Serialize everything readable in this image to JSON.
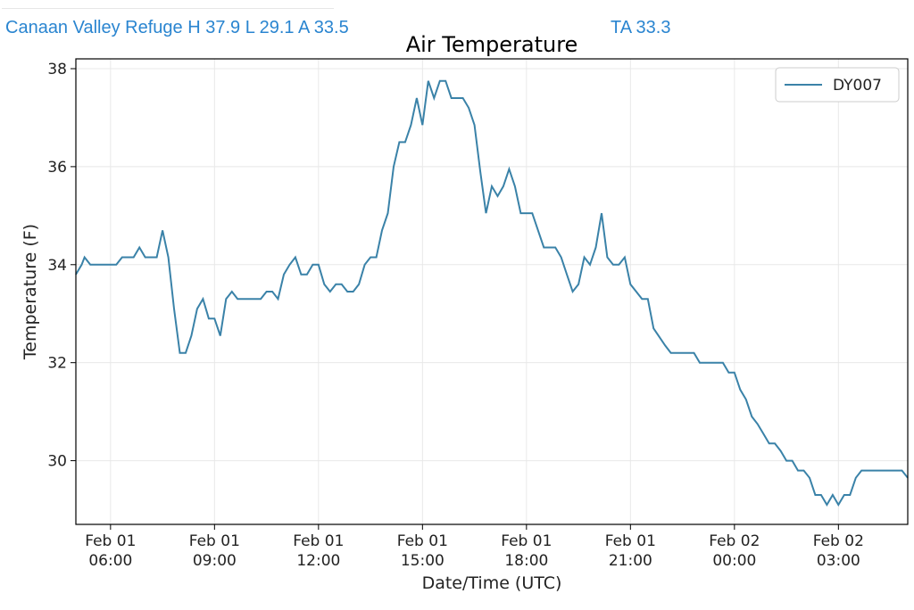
{
  "header": {
    "station_summary": "Canaan Valley Refuge H 37.9 L 29.1 A 33.5",
    "ta_label": "TA 33.3"
  },
  "colors": {
    "header_text": "#2a85d0",
    "series_line": "#3a82a8",
    "grid": "#e8e8e8"
  },
  "chart_data": {
    "type": "line",
    "title": "Air Temperature",
    "xlabel": "Date/Time (UTC)",
    "ylabel": "Temperature (F)",
    "xlim": [
      "Feb 01 05:00",
      "Feb 02 05:00"
    ],
    "ylim": [
      28.7,
      38.2
    ],
    "yticks": [
      30,
      32,
      34,
      36,
      38
    ],
    "xticks": [
      {
        "x": "Feb 01 06:00",
        "line1": "Feb 01",
        "line2": "06:00"
      },
      {
        "x": "Feb 01 09:00",
        "line1": "Feb 01",
        "line2": "09:00"
      },
      {
        "x": "Feb 01 12:00",
        "line1": "Feb 01",
        "line2": "12:00"
      },
      {
        "x": "Feb 01 15:00",
        "line1": "Feb 01",
        "line2": "15:00"
      },
      {
        "x": "Feb 01 18:00",
        "line1": "Feb 01",
        "line2": "18:00"
      },
      {
        "x": "Feb 01 21:00",
        "line1": "Feb 01",
        "line2": "21:00"
      },
      {
        "x": "Feb 02 00:00",
        "line1": "Feb 02",
        "line2": "00:00"
      },
      {
        "x": "Feb 02 03:00",
        "line1": "Feb 02",
        "line2": "03:00"
      }
    ],
    "grid": true,
    "legend_position": "top-right",
    "series": [
      {
        "name": "DY007",
        "color": "#3a82a8",
        "points": [
          [
            "Feb 01 05:00",
            33.8
          ],
          [
            "Feb 01 05:10",
            34.0
          ],
          [
            "Feb 01 05:15",
            34.15
          ],
          [
            "Feb 01 05:25",
            34.0
          ],
          [
            "Feb 01 06:00",
            34.0
          ],
          [
            "Feb 01 06:10",
            34.0
          ],
          [
            "Feb 01 06:20",
            34.15
          ],
          [
            "Feb 01 06:40",
            34.15
          ],
          [
            "Feb 01 06:50",
            34.35
          ],
          [
            "Feb 01 07:00",
            34.15
          ],
          [
            "Feb 01 07:20",
            34.15
          ],
          [
            "Feb 01 07:30",
            34.7
          ],
          [
            "Feb 01 07:40",
            34.15
          ],
          [
            "Feb 01 07:50",
            33.1
          ],
          [
            "Feb 01 08:00",
            32.2
          ],
          [
            "Feb 01 08:10",
            32.2
          ],
          [
            "Feb 01 08:20",
            32.55
          ],
          [
            "Feb 01 08:30",
            33.1
          ],
          [
            "Feb 01 08:40",
            33.3
          ],
          [
            "Feb 01 08:50",
            32.9
          ],
          [
            "Feb 01 09:00",
            32.9
          ],
          [
            "Feb 01 09:10",
            32.55
          ],
          [
            "Feb 01 09:20",
            33.3
          ],
          [
            "Feb 01 09:30",
            33.45
          ],
          [
            "Feb 01 09:40",
            33.3
          ],
          [
            "Feb 01 10:00",
            33.3
          ],
          [
            "Feb 01 10:20",
            33.3
          ],
          [
            "Feb 01 10:30",
            33.45
          ],
          [
            "Feb 01 10:40",
            33.45
          ],
          [
            "Feb 01 10:50",
            33.3
          ],
          [
            "Feb 01 11:00",
            33.8
          ],
          [
            "Feb 01 11:10",
            34.0
          ],
          [
            "Feb 01 11:20",
            34.15
          ],
          [
            "Feb 01 11:30",
            33.8
          ],
          [
            "Feb 01 11:40",
            33.8
          ],
          [
            "Feb 01 11:50",
            34.0
          ],
          [
            "Feb 01 12:00",
            34.0
          ],
          [
            "Feb 01 12:10",
            33.6
          ],
          [
            "Feb 01 12:20",
            33.45
          ],
          [
            "Feb 01 12:30",
            33.6
          ],
          [
            "Feb 01 12:40",
            33.6
          ],
          [
            "Feb 01 12:50",
            33.45
          ],
          [
            "Feb 01 13:00",
            33.45
          ],
          [
            "Feb 01 13:10",
            33.6
          ],
          [
            "Feb 01 13:20",
            34.0
          ],
          [
            "Feb 01 13:30",
            34.15
          ],
          [
            "Feb 01 13:40",
            34.15
          ],
          [
            "Feb 01 13:50",
            34.7
          ],
          [
            "Feb 01 14:00",
            35.05
          ],
          [
            "Feb 01 14:10",
            36.0
          ],
          [
            "Feb 01 14:20",
            36.5
          ],
          [
            "Feb 01 14:30",
            36.5
          ],
          [
            "Feb 01 14:40",
            36.85
          ],
          [
            "Feb 01 14:50",
            37.4
          ],
          [
            "Feb 01 15:00",
            36.85
          ],
          [
            "Feb 01 15:10",
            37.75
          ],
          [
            "Feb 01 15:20",
            37.4
          ],
          [
            "Feb 01 15:30",
            37.75
          ],
          [
            "Feb 01 15:40",
            37.75
          ],
          [
            "Feb 01 15:50",
            37.4
          ],
          [
            "Feb 01 16:10",
            37.4
          ],
          [
            "Feb 01 16:20",
            37.2
          ],
          [
            "Feb 01 16:30",
            36.85
          ],
          [
            "Feb 01 16:40",
            35.9
          ],
          [
            "Feb 01 16:50",
            35.05
          ],
          [
            "Feb 01 17:00",
            35.6
          ],
          [
            "Feb 01 17:10",
            35.4
          ],
          [
            "Feb 01 17:20",
            35.6
          ],
          [
            "Feb 01 17:30",
            35.95
          ],
          [
            "Feb 01 17:40",
            35.6
          ],
          [
            "Feb 01 17:50",
            35.05
          ],
          [
            "Feb 01 18:00",
            35.05
          ],
          [
            "Feb 01 18:10",
            35.05
          ],
          [
            "Feb 01 18:20",
            34.7
          ],
          [
            "Feb 01 18:30",
            34.35
          ],
          [
            "Feb 01 18:40",
            34.35
          ],
          [
            "Feb 01 18:50",
            34.35
          ],
          [
            "Feb 01 19:00",
            34.15
          ],
          [
            "Feb 01 19:10",
            33.8
          ],
          [
            "Feb 01 19:20",
            33.45
          ],
          [
            "Feb 01 19:30",
            33.6
          ],
          [
            "Feb 01 19:40",
            34.15
          ],
          [
            "Feb 01 19:50",
            34.0
          ],
          [
            "Feb 01 20:00",
            34.35
          ],
          [
            "Feb 01 20:10",
            35.05
          ],
          [
            "Feb 01 20:20",
            34.15
          ],
          [
            "Feb 01 20:30",
            34.0
          ],
          [
            "Feb 01 20:40",
            34.0
          ],
          [
            "Feb 01 20:50",
            34.15
          ],
          [
            "Feb 01 21:00",
            33.6
          ],
          [
            "Feb 01 21:10",
            33.45
          ],
          [
            "Feb 01 21:20",
            33.3
          ],
          [
            "Feb 01 21:30",
            33.3
          ],
          [
            "Feb 01 21:40",
            32.7
          ],
          [
            "Feb 01 22:00",
            32.35
          ],
          [
            "Feb 01 22:10",
            32.2
          ],
          [
            "Feb 01 22:50",
            32.2
          ],
          [
            "Feb 01 23:00",
            32.0
          ],
          [
            "Feb 01 23:40",
            32.0
          ],
          [
            "Feb 01 23:50",
            31.8
          ],
          [
            "Feb 02 00:00",
            31.8
          ],
          [
            "Feb 02 00:10",
            31.45
          ],
          [
            "Feb 02 00:20",
            31.25
          ],
          [
            "Feb 02 00:30",
            30.9
          ],
          [
            "Feb 02 00:40",
            30.75
          ],
          [
            "Feb 02 00:50",
            30.55
          ],
          [
            "Feb 02 01:00",
            30.35
          ],
          [
            "Feb 02 01:10",
            30.35
          ],
          [
            "Feb 02 01:20",
            30.2
          ],
          [
            "Feb 02 01:30",
            30.0
          ],
          [
            "Feb 02 01:40",
            30.0
          ],
          [
            "Feb 02 01:50",
            29.8
          ],
          [
            "Feb 02 02:00",
            29.8
          ],
          [
            "Feb 02 02:10",
            29.65
          ],
          [
            "Feb 02 02:20",
            29.3
          ],
          [
            "Feb 02 02:30",
            29.3
          ],
          [
            "Feb 02 02:40",
            29.1
          ],
          [
            "Feb 02 02:50",
            29.3
          ],
          [
            "Feb 02 03:00",
            29.1
          ],
          [
            "Feb 02 03:10",
            29.3
          ],
          [
            "Feb 02 03:20",
            29.3
          ],
          [
            "Feb 02 03:30",
            29.65
          ],
          [
            "Feb 02 03:40",
            29.8
          ],
          [
            "Feb 02 04:50",
            29.8
          ],
          [
            "Feb 02 05:00",
            29.65
          ]
        ]
      }
    ]
  }
}
